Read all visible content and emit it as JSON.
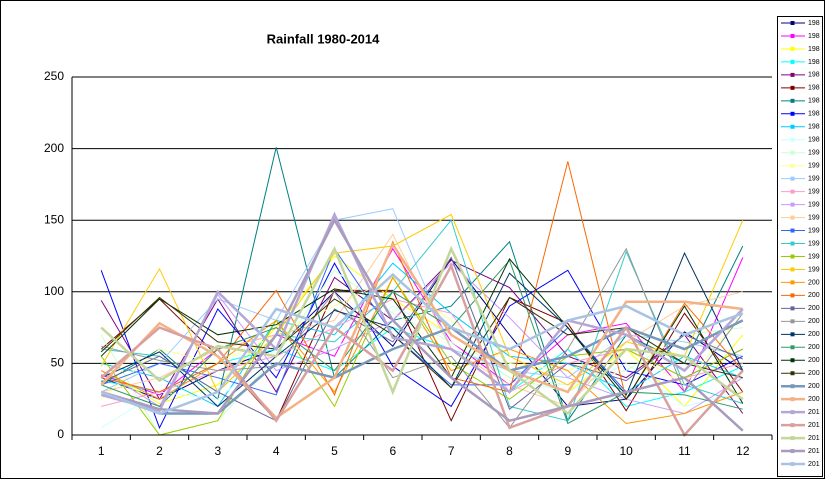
{
  "chart_data": {
    "type": "line",
    "title": "Rainfall 1980-2014",
    "categories": [
      "1",
      "2",
      "3",
      "4",
      "5",
      "6",
      "7",
      "8",
      "9",
      "10",
      "11",
      "12"
    ],
    "ylim": [
      0,
      250
    ],
    "yticks": [
      0,
      50,
      100,
      150,
      200,
      250
    ],
    "grid": true,
    "legend": "right",
    "series": [
      {
        "name": "198",
        "color": "#000080",
        "values": [
          40,
          25,
          45,
          60,
          100,
          62,
          123,
          70,
          20,
          25,
          72,
          45
        ]
      },
      {
        "name": "198",
        "color": "#FF00FF",
        "values": [
          42,
          28,
          60,
          70,
          55,
          130,
          65,
          35,
          70,
          78,
          30,
          124
        ]
      },
      {
        "name": "198",
        "color": "#FFFF00",
        "values": [
          45,
          22,
          35,
          75,
          125,
          95,
          70,
          40,
          30,
          60,
          20,
          70
        ]
      },
      {
        "name": "198",
        "color": "#00FFFF",
        "values": [
          38,
          30,
          50,
          60,
          45,
          75,
          60,
          30,
          60,
          20,
          30,
          48
        ]
      },
      {
        "name": "198",
        "color": "#800080",
        "values": [
          94,
          25,
          95,
          30,
          110,
          80,
          122,
          103,
          55,
          40,
          70,
          15
        ]
      },
      {
        "name": "198",
        "color": "#800000",
        "values": [
          60,
          95,
          55,
          10,
          101,
          101,
          10,
          96,
          78,
          17,
          85,
          30
        ]
      },
      {
        "name": "198",
        "color": "#008080",
        "values": [
          35,
          60,
          25,
          201,
          40,
          80,
          90,
          135,
          10,
          70,
          50,
          132
        ]
      },
      {
        "name": "198",
        "color": "#0000FF",
        "values": [
          115,
          5,
          88,
          40,
          120,
          48,
          20,
          90,
          115,
          45,
          35,
          55
        ]
      },
      {
        "name": "198",
        "color": "#00CCFF",
        "values": [
          50,
          40,
          20,
          80,
          70,
          120,
          85,
          55,
          50,
          30,
          55,
          40
        ]
      },
      {
        "name": "198",
        "color": "#CCFFFF",
        "values": [
          5,
          30,
          25,
          60,
          60,
          90,
          70,
          40,
          30,
          50,
          20,
          30
        ]
      },
      {
        "name": "199",
        "color": "#CCFFCC",
        "values": [
          70,
          0,
          10,
          55,
          115,
          85,
          65,
          40,
          35,
          45,
          70,
          75
        ]
      },
      {
        "name": "199",
        "color": "#FFFF99",
        "values": [
          25,
          60,
          50,
          70,
          90,
          110,
          80,
          50,
          45,
          60,
          35,
          85
        ]
      },
      {
        "name": "199",
        "color": "#99CCFF",
        "values": [
          30,
          50,
          95,
          80,
          150,
          158,
          60,
          45,
          40,
          70,
          65,
          55
        ]
      },
      {
        "name": "199",
        "color": "#FF99CC",
        "values": [
          20,
          30,
          45,
          55,
          75,
          95,
          85,
          30,
          50,
          60,
          40,
          50
        ]
      },
      {
        "name": "199",
        "color": "#CC99FF",
        "values": [
          45,
          20,
          98,
          45,
          60,
          80,
          120,
          82,
          40,
          25,
          15,
          40
        ]
      },
      {
        "name": "199",
        "color": "#FFCC99",
        "values": [
          30,
          40,
          60,
          70,
          80,
          140,
          60,
          35,
          20,
          65,
          90,
          100
        ]
      },
      {
        "name": "199",
        "color": "#3366FF",
        "values": [
          35,
          50,
          40,
          28,
          130,
          70,
          35,
          35,
          75,
          30,
          40,
          60
        ]
      },
      {
        "name": "199",
        "color": "#33CCCC",
        "values": [
          60,
          55,
          30,
          70,
          65,
          100,
          150,
          20,
          10,
          128,
          35,
          22
        ]
      },
      {
        "name": "199",
        "color": "#99CC00",
        "values": [
          55,
          0,
          10,
          80,
          20,
          110,
          50,
          25,
          55,
          60,
          40,
          60
        ]
      },
      {
        "name": "199",
        "color": "#FFCC00",
        "values": [
          48,
          116,
          30,
          70,
          127,
          132,
          154,
          55,
          35,
          65,
          55,
          150
        ]
      },
      {
        "name": "200",
        "color": "#FF9900",
        "values": [
          45,
          25,
          50,
          80,
          30,
          110,
          45,
          60,
          45,
          8,
          15,
          30
        ]
      },
      {
        "name": "200",
        "color": "#FF6600",
        "values": [
          40,
          30,
          50,
          101,
          28,
          135,
          40,
          30,
          191,
          25,
          92,
          45
        ]
      },
      {
        "name": "200",
        "color": "#666699",
        "values": [
          37,
          55,
          30,
          10,
          88,
          65,
          124,
          18,
          50,
          38,
          70,
          53
        ]
      },
      {
        "name": "200",
        "color": "#969696",
        "values": [
          62,
          52,
          45,
          48,
          100,
          40,
          55,
          5,
          60,
          130,
          30,
          85
        ]
      },
      {
        "name": "200",
        "color": "#003366",
        "values": [
          40,
          58,
          20,
          55,
          87,
          75,
          33,
          113,
          75,
          28,
          127,
          45
        ]
      },
      {
        "name": "200",
        "color": "#339966",
        "values": [
          35,
          20,
          60,
          75,
          45,
          100,
          75,
          122,
          8,
          30,
          28,
          18
        ]
      },
      {
        "name": "200",
        "color": "#003300",
        "values": [
          55,
          95,
          70,
          77,
          102,
          95,
          40,
          123,
          75,
          25,
          90,
          22
        ]
      },
      {
        "name": "200",
        "color": "#333300",
        "values": [
          58,
          96,
          65,
          60,
          95,
          70,
          33,
          96,
          70,
          75,
          50,
          40
        ]
      },
      {
        "name": "200",
        "color": "#7799BB",
        "values": [
          30,
          15,
          15,
          50,
          40,
          60,
          75,
          45,
          55,
          75,
          60,
          80
        ]
      },
      {
        "name": "200",
        "color": "#F4B183",
        "values": [
          35,
          78,
          55,
          12,
          40,
          133,
          70,
          45,
          30,
          93,
          93,
          88
        ]
      },
      {
        "name": "201",
        "color": "#B4A7D6",
        "values": [
          28,
          17,
          100,
          60,
          154,
          68,
          60,
          30,
          80,
          70,
          45,
          88
        ]
      },
      {
        "name": "201",
        "color": "#D9A0A0",
        "values": [
          40,
          75,
          60,
          10,
          75,
          45,
          118,
          5,
          20,
          75,
          0,
          45
        ]
      },
      {
        "name": "201",
        "color": "#C4D79B",
        "values": [
          75,
          38,
          62,
          55,
          130,
          30,
          130,
          45,
          15,
          60,
          55,
          25
        ]
      },
      {
        "name": "201",
        "color": "#A99BBD",
        "values": [
          30,
          18,
          15,
          70,
          150,
          80,
          40,
          10,
          20,
          30,
          40,
          3
        ]
      },
      {
        "name": "201",
        "color": "#A9C4E3",
        "values": [
          30,
          15,
          30,
          88,
          75,
          112,
          75,
          60,
          80,
          90,
          70,
          85
        ]
      }
    ]
  }
}
